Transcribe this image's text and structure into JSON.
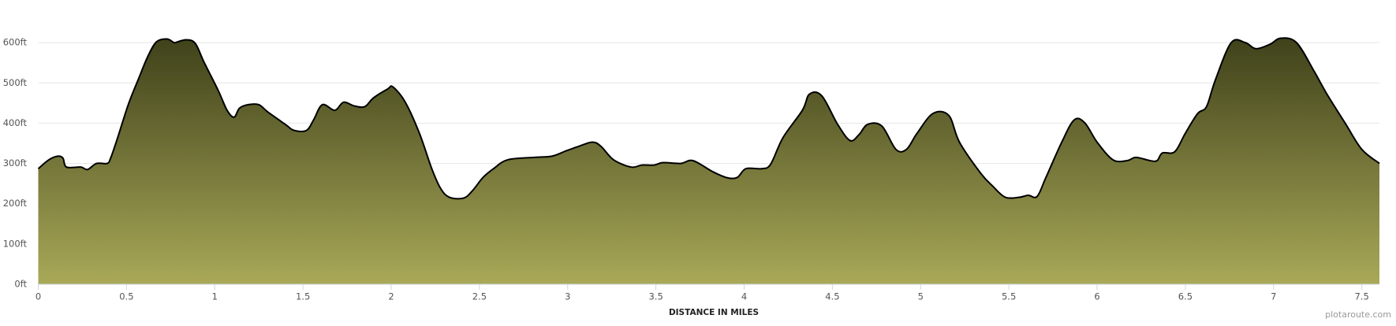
{
  "chart_data": {
    "type": "area",
    "x_label": "DISTANCE IN MILES",
    "x": [
      0,
      0.06,
      0.11,
      0.14,
      0.16,
      0.24,
      0.28,
      0.33,
      0.39,
      0.41,
      0.45,
      0.51,
      0.57,
      0.62,
      0.67,
      0.73,
      0.77,
      0.79,
      0.84,
      0.89,
      0.94,
      1.02,
      1.07,
      1.11,
      1.14,
      1.19,
      1.25,
      1.3,
      1.4,
      1.45,
      1.52,
      1.56,
      1.61,
      1.68,
      1.73,
      1.79,
      1.85,
      1.9,
      1.98,
      2.01,
      2.08,
      2.16,
      2.23,
      2.28,
      2.33,
      2.41,
      2.46,
      2.52,
      2.58,
      2.66,
      2.81,
      2.91,
      2.99,
      3.06,
      3.14,
      3.19,
      3.26,
      3.36,
      3.42,
      3.49,
      3.54,
      3.64,
      3.71,
      3.82,
      3.9,
      3.96,
      4.01,
      4.1,
      4.15,
      4.22,
      4.33,
      4.37,
      4.44,
      4.53,
      4.6,
      4.65,
      4.7,
      4.78,
      4.86,
      4.92,
      4.98,
      5.07,
      5.16,
      5.22,
      5.34,
      5.41,
      5.48,
      5.56,
      5.61,
      5.66,
      5.71,
      5.8,
      5.87,
      5.93,
      6.0,
      6.09,
      6.17,
      6.22,
      6.3,
      6.34,
      6.37,
      6.44,
      6.5,
      6.57,
      6.62,
      6.67,
      6.76,
      6.84,
      6.9,
      6.98,
      7.04,
      7.13,
      7.23,
      7.3,
      7.41,
      7.5,
      7.6
    ],
    "series": [
      {
        "color": "#000000",
        "gradient": [
          "#3f411a",
          "#a9a958"
        ],
        "values": [
          287,
          309,
          318,
          313,
          291,
          291,
          285,
          300,
          300,
          313,
          364,
          446,
          512,
          565,
          602,
          609,
          600,
          602,
          607,
          598,
          551,
          481,
          432,
          415,
          437,
          446,
          446,
          428,
          397,
          382,
          382,
          408,
          446,
          432,
          452,
          443,
          441,
          463,
          485,
          490,
          452,
          375,
          287,
          238,
          216,
          214,
          232,
          265,
          287,
          309,
          315,
          318,
          331,
          342,
          353,
          342,
          309,
          291,
          296,
          296,
          302,
          300,
          307,
          280,
          265,
          265,
          287,
          287,
          298,
          364,
          432,
          472,
          468,
          397,
          357,
          371,
          397,
          393,
          335,
          335,
          375,
          424,
          419,
          353,
          276,
          243,
          216,
          216,
          221,
          218,
          265,
          353,
          408,
          401,
          353,
          309,
          307,
          315,
          307,
          307,
          326,
          329,
          375,
          424,
          441,
          507,
          600,
          600,
          585,
          596,
          611,
          600,
          529,
          474,
          397,
          335,
          300
        ]
      }
    ],
    "xlim": [
      0,
      7.6
    ],
    "xticks": [
      0,
      0.5,
      1,
      1.5,
      2,
      2.5,
      3,
      3.5,
      4,
      4.5,
      5,
      5.5,
      6,
      6.5,
      7,
      7.5
    ],
    "ylim": [
      0,
      700
    ],
    "yticks": [
      {
        "value": 0,
        "label": "0ft"
      },
      {
        "value": 100,
        "label": "100ft"
      },
      {
        "value": 200,
        "label": "200ft"
      },
      {
        "value": 300,
        "label": "300ft"
      },
      {
        "value": 400,
        "label": "400ft"
      },
      {
        "value": 500,
        "label": "500ft"
      },
      {
        "value": 600,
        "label": "600ft"
      }
    ],
    "grid": true
  },
  "footer": {
    "credit": "plotaroute.com"
  }
}
